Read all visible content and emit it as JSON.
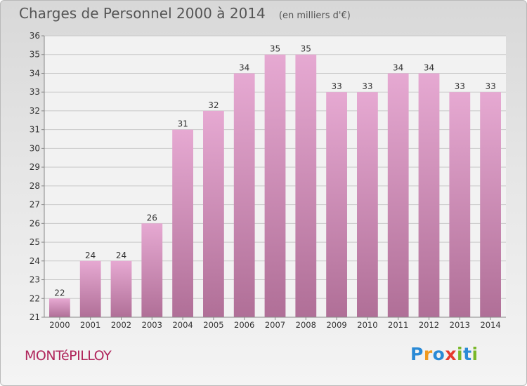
{
  "header": {
    "title": "Charges de Personnel 2000 à 2014",
    "subtitle": "(en milliers d'€)"
  },
  "commune": "MONTéPILLOY",
  "logo": {
    "text": "Proxiti",
    "letters": [
      {
        "ch": "P",
        "color": "#2a8ad6"
      },
      {
        "ch": "r",
        "color": "#f19a1f"
      },
      {
        "ch": "o",
        "color": "#2a8ad6"
      },
      {
        "ch": "x",
        "color": "#e63a2e"
      },
      {
        "ch": "i",
        "color": "#79b829"
      },
      {
        "ch": "t",
        "color": "#2a8ad6"
      },
      {
        "ch": "i",
        "color": "#79b829"
      }
    ]
  },
  "colors": {
    "bar_top": "#e6a9d2",
    "bar_bottom": "#b06f97",
    "grid": "#c9c9c9",
    "text": "#333333",
    "commune": "#b0265c"
  },
  "chart_data": {
    "type": "bar",
    "title": "Charges de Personnel 2000 à 2014",
    "subtitle": "(en milliers d'€)",
    "xlabel": "",
    "ylabel": "",
    "categories": [
      "2000",
      "2001",
      "2002",
      "2003",
      "2004",
      "2005",
      "2006",
      "2007",
      "2008",
      "2009",
      "2010",
      "2011",
      "2012",
      "2013",
      "2014"
    ],
    "values": [
      22,
      24,
      24,
      26,
      31,
      32,
      34,
      35,
      35,
      33,
      33,
      34,
      34,
      33,
      33
    ],
    "ylim": [
      21,
      36
    ],
    "yticks": [
      21,
      22,
      23,
      24,
      25,
      26,
      27,
      28,
      29,
      30,
      31,
      32,
      33,
      34,
      35,
      36
    ],
    "grid": true,
    "data_labels": true
  }
}
